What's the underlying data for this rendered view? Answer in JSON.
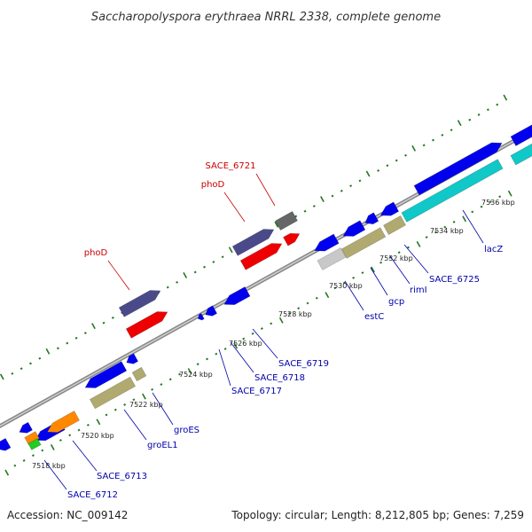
{
  "title": "Saccharopolyspora erythraea NRRL 2338, complete genome",
  "accession": "Accession: NC_009142",
  "topology": "Topology: circular; Length: 8,212,805 bp; Genes: 7,259",
  "colors": {
    "backbone": "#9a9a9a",
    "tick": "#227722",
    "forward_label": "#cc0000",
    "reverse_label": "#0000aa",
    "blue": "#0000ee",
    "red": "#ee0000",
    "purple": "#4a4a8a",
    "dark_gray": "#666666",
    "khaki": "#b0aa70",
    "light_gray": "#c8c8c8",
    "cyan": "#10c8c8",
    "orange": "#ff8800",
    "green": "#22cc22"
  },
  "kbp_ticks": [
    {
      "label": "7518 kbp"
    },
    {
      "label": "7520 kbp"
    },
    {
      "label": "7522 kbp"
    },
    {
      "label": "7524 kbp"
    },
    {
      "label": "7526 kbp"
    },
    {
      "label": "7528 kbp"
    },
    {
      "label": "7530 kbp"
    },
    {
      "label": "7532 kbp"
    },
    {
      "label": "7534 kbp"
    },
    {
      "label": "7536 kbp"
    }
  ],
  "gene_labels": [
    {
      "name": "SACE_6721",
      "strand": "forward"
    },
    {
      "name": "phoD",
      "strand": "forward"
    },
    {
      "name": "phoD",
      "strand": "forward"
    },
    {
      "name": "lacZ",
      "strand": "reverse"
    },
    {
      "name": "SACE_6725",
      "strand": "reverse"
    },
    {
      "name": "rimI",
      "strand": "reverse"
    },
    {
      "name": "gcp",
      "strand": "reverse"
    },
    {
      "name": "estC",
      "strand": "reverse"
    },
    {
      "name": "SACE_6719",
      "strand": "reverse"
    },
    {
      "name": "SACE_6718",
      "strand": "reverse"
    },
    {
      "name": "SACE_6717",
      "strand": "reverse"
    },
    {
      "name": "groES",
      "strand": "reverse"
    },
    {
      "name": "groEL1",
      "strand": "reverse"
    },
    {
      "name": "SACE_6713",
      "strand": "reverse"
    },
    {
      "name": "SACE_6712",
      "strand": "reverse"
    }
  ]
}
